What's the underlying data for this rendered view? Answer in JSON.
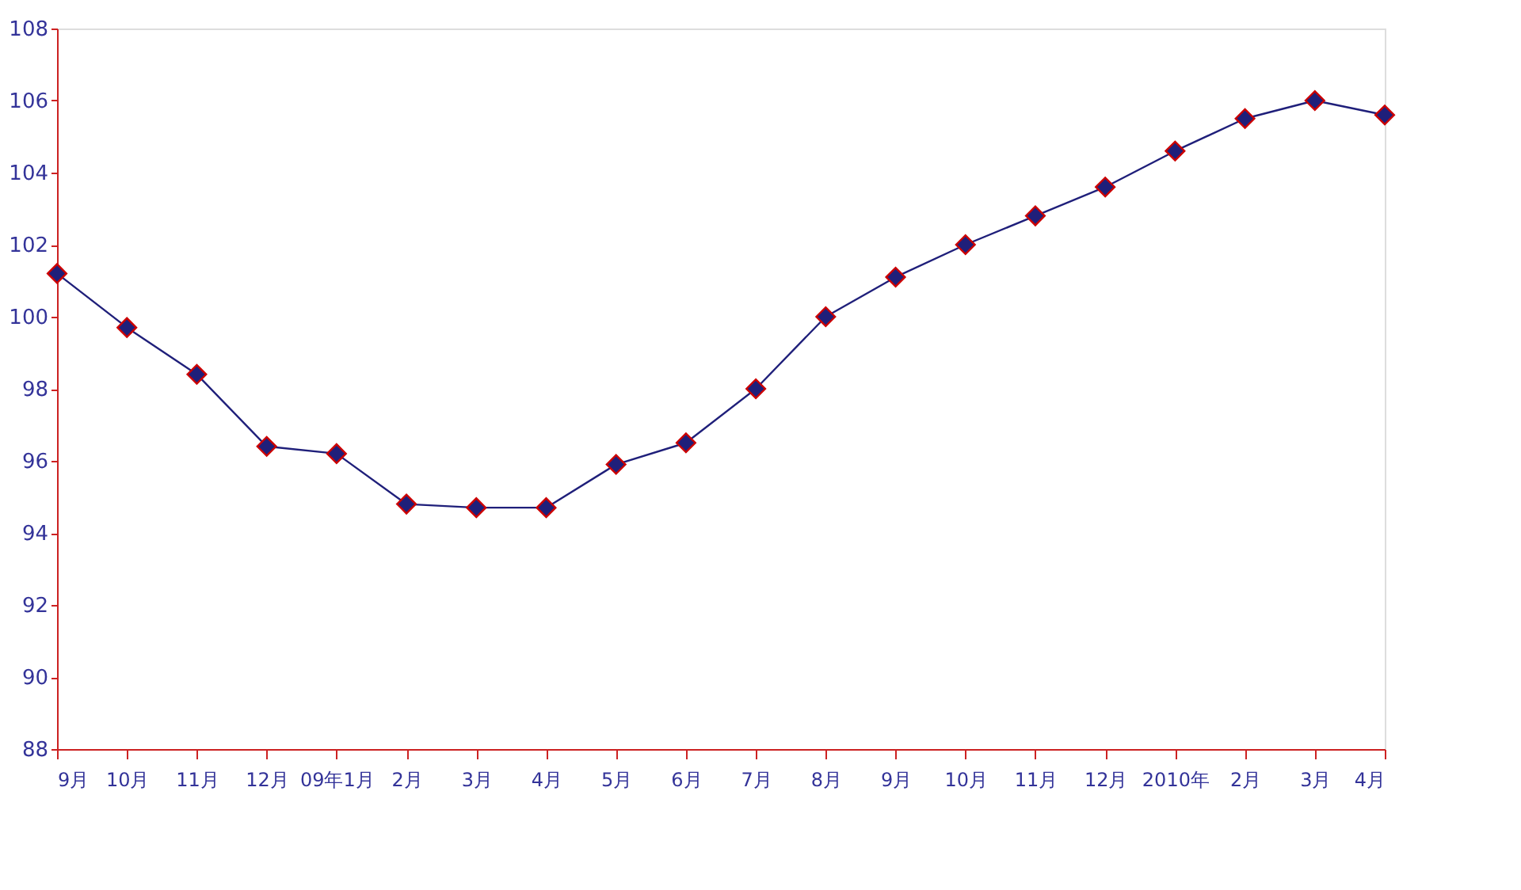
{
  "chart_data": {
    "type": "line",
    "categories": [
      "9月",
      "10月",
      "11月",
      "12月",
      "09年1月",
      "2月",
      "3月",
      "4月",
      "5月",
      "6月",
      "7月",
      "8月",
      "9月",
      "10月",
      "11月",
      "12月",
      "2010年",
      "2月",
      "3月",
      "4月"
    ],
    "series": [
      {
        "color": "#1f1f7a",
        "values": [
          101.2,
          99.7,
          98.4,
          96.4,
          96.2,
          94.8,
          94.7,
          94.7,
          95.9,
          96.5,
          98.0,
          100.0,
          101.1,
          102.0,
          102.8,
          103.6,
          104.6,
          105.5,
          106.0,
          105.6
        ]
      }
    ],
    "ylim": [
      88,
      108
    ],
    "yticks": [
      88,
      90,
      92,
      94,
      96,
      98,
      100,
      102,
      104,
      106,
      108
    ],
    "marker": "diamond",
    "line_style": "solid",
    "grid": false,
    "legend": false
  }
}
